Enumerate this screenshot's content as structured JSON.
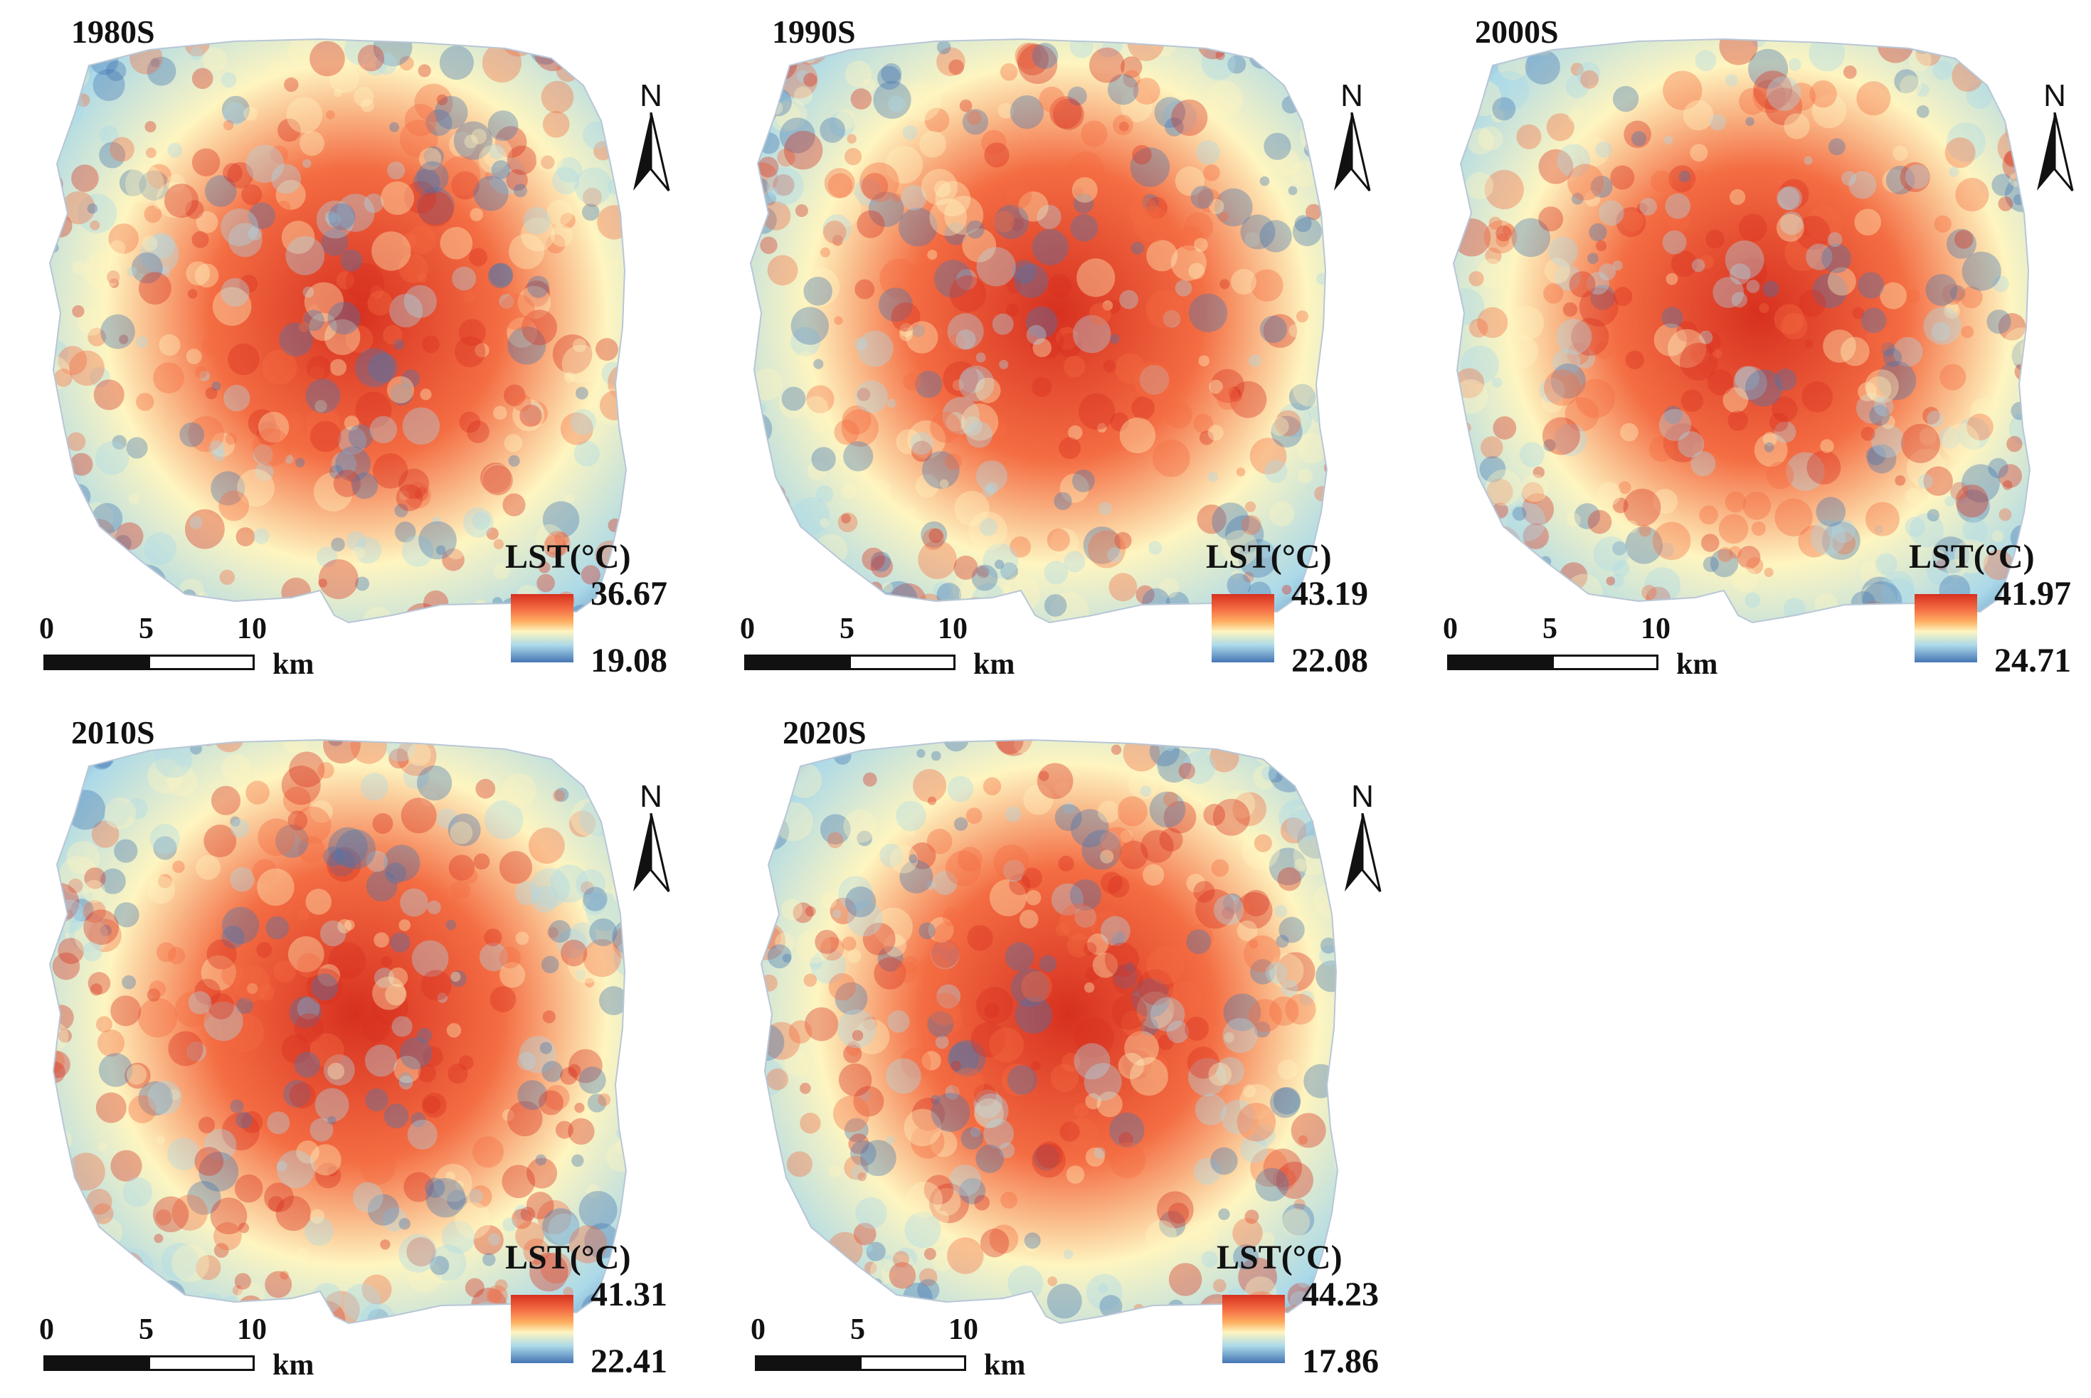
{
  "panels": [
    {
      "year": "1980S",
      "legend": {
        "title": "LST(°C)",
        "max": "36.67",
        "min": "19.08"
      }
    },
    {
      "year": "1990S",
      "legend": {
        "title": "LST(°C)",
        "max": "43.19",
        "min": "22.08"
      }
    },
    {
      "year": "2000S",
      "legend": {
        "title": "LST(°C)",
        "max": "41.97",
        "min": "24.71"
      }
    },
    {
      "year": "2010S",
      "legend": {
        "title": "LST(°C)",
        "max": "41.31",
        "min": "22.41"
      }
    },
    {
      "year": "2020S",
      "legend": {
        "title": "LST(°C)",
        "max": "44.23",
        "min": "17.86"
      }
    }
  ],
  "north_label": "N",
  "scale_bar": {
    "ticks": [
      "0",
      "5",
      "10"
    ],
    "unit": "km"
  },
  "colors": {
    "hot": "#d7301f",
    "warm": "#f46d43",
    "mid": "#fef5c0",
    "cool": "#abd9e9",
    "cold": "#4575b4"
  },
  "icons": {
    "north_arrow": "north-arrow-icon"
  }
}
